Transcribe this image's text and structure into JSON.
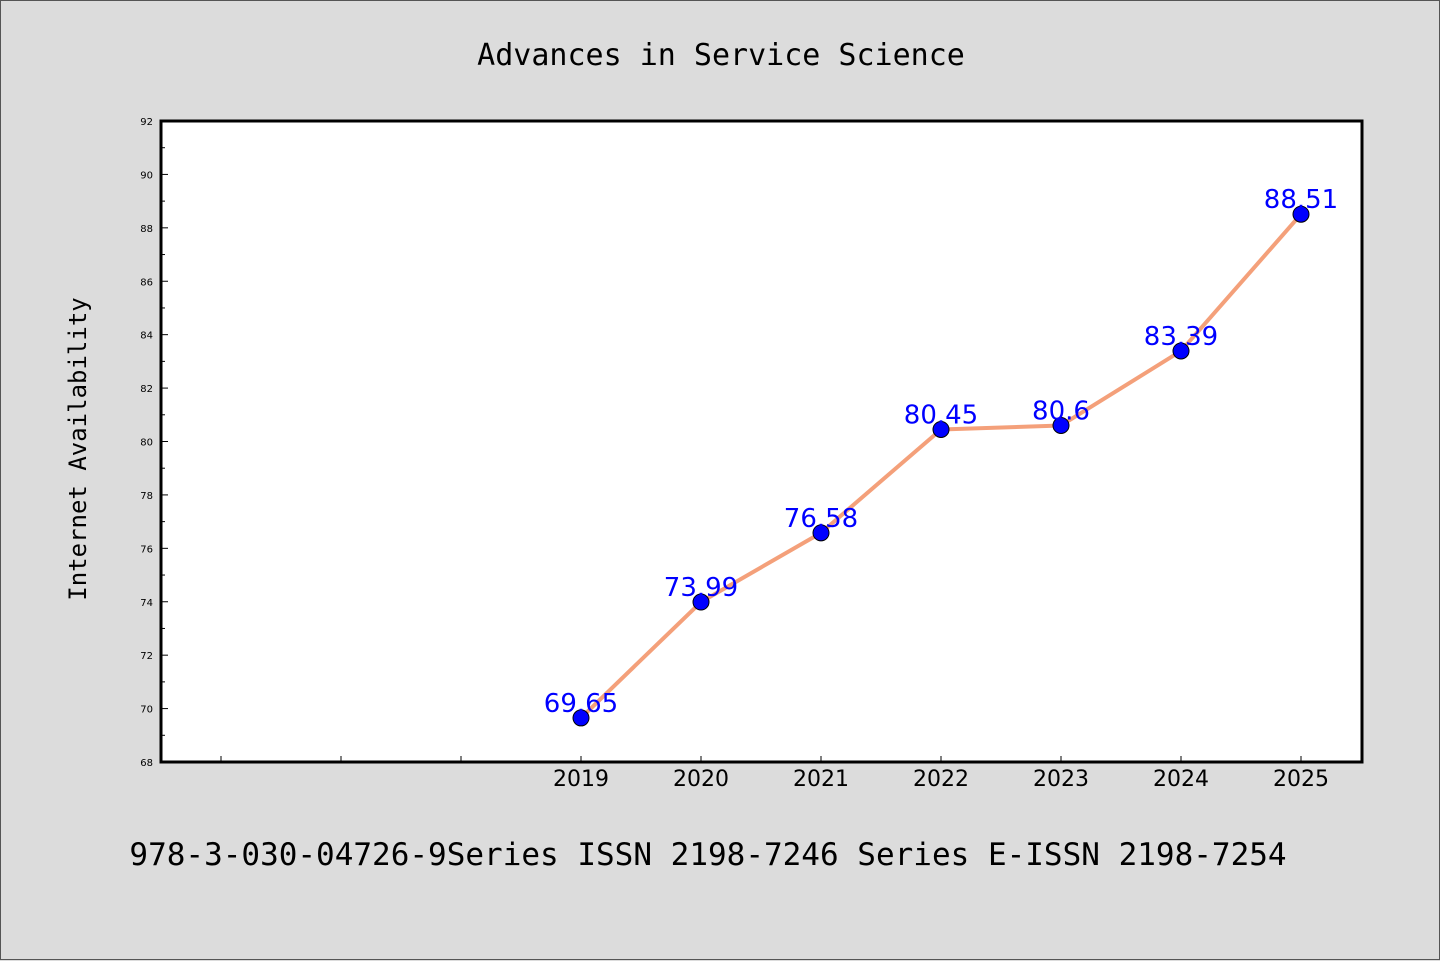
{
  "chart_data": {
    "type": "line",
    "title": "Advances in Service Science",
    "xlabel": "",
    "ylabel": "Internet Availability",
    "categories": [
      "2019",
      "2020",
      "2021",
      "2022",
      "2023",
      "2024",
      "2025"
    ],
    "series": [
      {
        "values": [
          69.65,
          73.99,
          76.58,
          80.45,
          80.6,
          83.39,
          88.51
        ]
      }
    ],
    "data_labels": [
      "69.65",
      "73.99",
      "76.58",
      "80.45",
      "80.6",
      "83.39",
      "88.51"
    ],
    "ylim": [
      68,
      92
    ],
    "yticks": [
      68,
      70,
      72,
      74,
      76,
      78,
      80,
      82,
      84,
      86,
      88,
      90,
      92
    ],
    "grid": false,
    "line_color": "#f4a07a",
    "marker_color": "#0000ff",
    "label_color": "#0000ff"
  },
  "footer_text": "978-3-030-04726-9Series ISSN 2198-7246 Series E-ISSN 2198-7254"
}
